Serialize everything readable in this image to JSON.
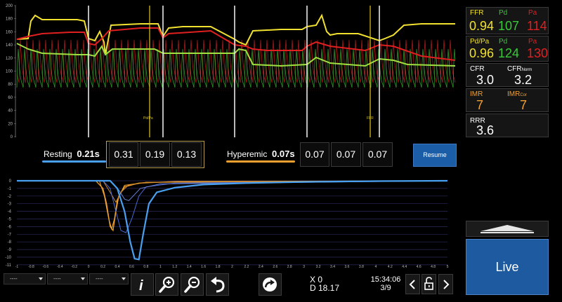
{
  "colors": {
    "ffr_yellow": "#f0e030",
    "pd_green": "#38c838",
    "pa_red": "#e02020",
    "resting_blue": "#4aa0f0",
    "hyperemic_orange": "#f0a030",
    "imr_orange": "#f0a030",
    "live_blue": "#1e5aa0"
  },
  "top_chart": {
    "y_ticks": [
      "200",
      "180",
      "160",
      "140",
      "120",
      "100",
      "80",
      "60",
      "40",
      "20",
      "0"
    ],
    "marker_labels": [
      {
        "label": "Pd/Pa"
      },
      {
        "label": "FFR"
      }
    ]
  },
  "metrics": {
    "ffr": {
      "label": "FFR",
      "value": "0.94",
      "pd_label": "Pd",
      "pd_value": "107",
      "pa_label": "Pa",
      "pa_value": "114"
    },
    "pdpa": {
      "label": "Pd/Pa",
      "value": "0.96",
      "pd_label": "Pd",
      "pd_value": "124",
      "pa_label": "Pa",
      "pa_value": "130"
    },
    "cfr": {
      "label": "CFR",
      "value": "3.0",
      "norm_label": "CFR",
      "norm_sub": "Norm",
      "norm_value": "3.2"
    },
    "imr": {
      "label": "IMR",
      "value": "7",
      "cor_label": "IMR",
      "cor_sub": "Cor",
      "cor_value": "7"
    },
    "rrr": {
      "label": "RRR",
      "value": "3.6"
    }
  },
  "transit": {
    "resting_label": "Resting",
    "resting_mean": "0.21s",
    "resting_values": [
      "0.31",
      "0.19",
      "0.13"
    ],
    "hyperemic_label": "Hyperemic",
    "hyperemic_mean": "0.07s",
    "hyperemic_values": [
      "0.07",
      "0.07",
      "0.07"
    ],
    "resume_label": "Resume"
  },
  "bottom_chart": {
    "y_ticks": [
      "0",
      "-1",
      "-2",
      "-3",
      "-4",
      "-5",
      "-6",
      "-7",
      "-8",
      "-9",
      "-10",
      "-11"
    ],
    "x_ticks": [
      "-1",
      "-0.8",
      "-0.6",
      "-0.4",
      "-0.2",
      "0",
      "0.2",
      "0.4",
      "0.6",
      "0.8",
      "1",
      "1.2",
      "1.4",
      "1.6",
      "1.8",
      "2",
      "2.2",
      "2.4",
      "2.6",
      "2.8",
      "3",
      "3.2",
      "3.4",
      "3.6",
      "3.8",
      "4",
      "4.2",
      "4.4",
      "4.6",
      "4.8",
      "5"
    ]
  },
  "toolbar": {
    "dropdowns": [
      "----",
      "----",
      "----"
    ],
    "icons": [
      "info-icon",
      "zoom-in-icon",
      "zoom-out-icon",
      "undo-icon",
      "share-icon",
      "unlock-icon",
      "chevron-left-icon",
      "chevron-right-icon"
    ],
    "x_readout": "X 0",
    "d_readout": "D 18.17",
    "time": "15:34:06",
    "page": "3/9",
    "live_label": "Live"
  }
}
